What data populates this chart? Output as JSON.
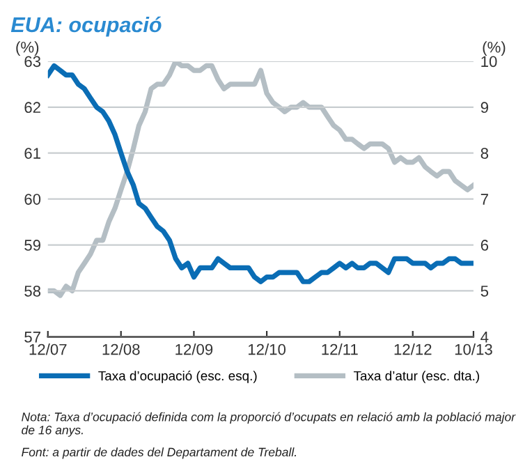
{
  "chart_data": {
    "type": "line",
    "title": "EUA: ocupació",
    "ylabel": "(%)",
    "y2label": "(%)",
    "x": [
      "2007-12",
      "2008-01",
      "2008-02",
      "2008-03",
      "2008-04",
      "2008-05",
      "2008-06",
      "2008-07",
      "2008-08",
      "2008-09",
      "2008-10",
      "2008-11",
      "2008-12",
      "2009-01",
      "2009-02",
      "2009-03",
      "2009-04",
      "2009-05",
      "2009-06",
      "2009-07",
      "2009-08",
      "2009-09",
      "2009-10",
      "2009-11",
      "2009-12",
      "2010-01",
      "2010-02",
      "2010-03",
      "2010-04",
      "2010-05",
      "2010-06",
      "2010-07",
      "2010-08",
      "2010-09",
      "2010-10",
      "2010-11",
      "2010-12",
      "2011-01",
      "2011-02",
      "2011-03",
      "2011-04",
      "2011-05",
      "2011-06",
      "2011-07",
      "2011-08",
      "2011-09",
      "2011-10",
      "2011-11",
      "2011-12",
      "2012-01",
      "2012-02",
      "2012-03",
      "2012-04",
      "2012-05",
      "2012-06",
      "2012-07",
      "2012-08",
      "2012-09",
      "2012-10",
      "2012-11",
      "2012-12",
      "2013-01",
      "2013-02",
      "2013-03",
      "2013-04",
      "2013-05",
      "2013-06",
      "2013-07",
      "2013-08",
      "2013-09",
      "2013-10"
    ],
    "series": [
      {
        "name": "Taxa d’ocupació (esc. esq.)",
        "color": "#0a6db5",
        "values": [
          62.7,
          62.9,
          62.8,
          62.7,
          62.7,
          62.5,
          62.4,
          62.2,
          62.0,
          61.9,
          61.7,
          61.4,
          61.0,
          60.6,
          60.3,
          59.9,
          59.8,
          59.6,
          59.4,
          59.3,
          59.1,
          58.7,
          58.5,
          58.6,
          58.3,
          58.5,
          58.5,
          58.5,
          58.7,
          58.6,
          58.5,
          58.5,
          58.5,
          58.5,
          58.3,
          58.2,
          58.3,
          58.3,
          58.4,
          58.4,
          58.4,
          58.4,
          58.2,
          58.2,
          58.3,
          58.4,
          58.4,
          58.5,
          58.6,
          58.5,
          58.6,
          58.5,
          58.5,
          58.6,
          58.6,
          58.5,
          58.4,
          58.7,
          58.7,
          58.7,
          58.6,
          58.6,
          58.6,
          58.5,
          58.6,
          58.6,
          58.7,
          58.7,
          58.6,
          58.6,
          58.6
        ]
      },
      {
        "name": "Taxa d’atur (esc. dta.)",
        "color": "#b4bec4",
        "axis": "y2",
        "values": [
          5.0,
          5.0,
          4.9,
          5.1,
          5.0,
          5.4,
          5.6,
          5.8,
          6.1,
          6.1,
          6.5,
          6.8,
          7.2,
          7.6,
          8.1,
          8.6,
          8.9,
          9.4,
          9.5,
          9.5,
          9.7,
          10.0,
          9.9,
          9.9,
          9.8,
          9.8,
          9.9,
          9.9,
          9.6,
          9.4,
          9.5,
          9.5,
          9.5,
          9.5,
          9.5,
          9.8,
          9.3,
          9.1,
          9.0,
          8.9,
          9.0,
          9.0,
          9.1,
          9.0,
          9.0,
          9.0,
          8.8,
          8.6,
          8.5,
          8.3,
          8.3,
          8.2,
          8.1,
          8.2,
          8.2,
          8.2,
          8.1,
          7.8,
          7.9,
          7.8,
          7.8,
          7.9,
          7.7,
          7.6,
          7.5,
          7.6,
          7.6,
          7.4,
          7.3,
          7.2,
          7.3
        ]
      }
    ],
    "xlim": [
      "2007-12",
      "2013-10"
    ],
    "xticks": [
      {
        "value": "2007-12",
        "label": "12/07"
      },
      {
        "value": "2008-12",
        "label": "12/08"
      },
      {
        "value": "2009-12",
        "label": "12/09"
      },
      {
        "value": "2010-12",
        "label": "12/10"
      },
      {
        "value": "2011-12",
        "label": "12/11"
      },
      {
        "value": "2012-12",
        "label": "12/12"
      },
      {
        "value": "2013-10",
        "label": "10/13"
      }
    ],
    "ylim": [
      57,
      63
    ],
    "yticks": [
      57,
      58,
      59,
      60,
      61,
      62,
      63
    ],
    "y2lim": [
      4,
      10
    ],
    "y2ticks": [
      4,
      5,
      6,
      7,
      8,
      9,
      10
    ],
    "grid": "y",
    "legend": "bottom",
    "marker": "none",
    "line_style": "solid",
    "annotations": [
      "Nota: Taxa d’ocupació definida com la proporció d’ocupats en relació amb la població major de 16 anys.",
      "Font: a partir de dades del Departament de Treball."
    ]
  }
}
